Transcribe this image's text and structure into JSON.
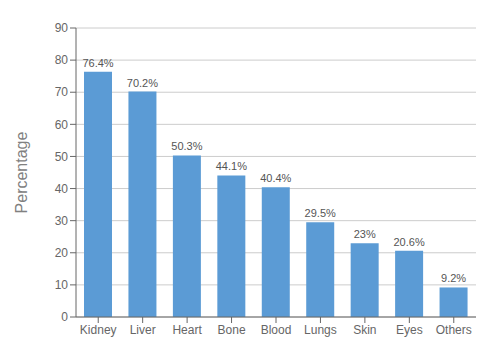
{
  "chart_data": {
    "type": "bar",
    "categories": [
      "Kidney",
      "Liver",
      "Heart",
      "Bone",
      "Blood",
      "Lungs",
      "Skin",
      "Eyes",
      "Others"
    ],
    "values": [
      76.4,
      70.2,
      50.3,
      44.1,
      40.4,
      29.5,
      23.0,
      20.6,
      9.2
    ],
    "value_labels": [
      "76.4%",
      "70.2%",
      "50.3%",
      "44.1%",
      "40.4%",
      "29.5%",
      "23%",
      "20.6%",
      "9.2%"
    ],
    "data_labels": true,
    "color": "#5B9BD5",
    "ylabel": "Percentage",
    "ylim": [
      0,
      90
    ],
    "yticks": [
      0,
      10,
      20,
      30,
      40,
      50,
      60,
      70,
      80,
      90
    ],
    "grid": true
  }
}
